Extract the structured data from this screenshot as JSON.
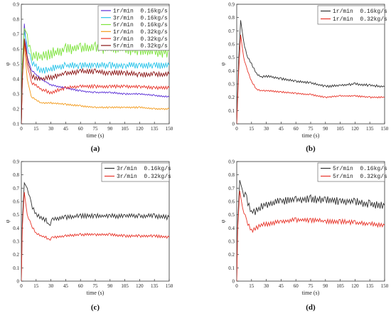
{
  "chart_data": [
    {
      "type": "line",
      "panel_label": "(a)",
      "xlabel": "time (s)",
      "ylabel": "φ",
      "xlim": [
        0,
        150
      ],
      "ylim": [
        0.1,
        0.9
      ],
      "xticks": [
        "0",
        "15",
        "30",
        "45",
        "60",
        "75",
        "90",
        "105",
        "120",
        "135",
        "150"
      ],
      "yticks": [
        "0.1",
        "0.2",
        "0.3",
        "0.4",
        "0.5",
        "0.6",
        "0.7",
        "0.8",
        "0.9"
      ],
      "legend_position": "top-right",
      "grid": false,
      "series": [
        {
          "name": "1r/min  0.16kg/s",
          "color": "#5b2fd6",
          "noise": 0.004,
          "points": [
            [
              0,
              0.1
            ],
            [
              1,
              0.45
            ],
            [
              3,
              0.77
            ],
            [
              6,
              0.55
            ],
            [
              10,
              0.46
            ],
            [
              20,
              0.4
            ],
            [
              30,
              0.36
            ],
            [
              45,
              0.34
            ],
            [
              60,
              0.32
            ],
            [
              75,
              0.31
            ],
            [
              90,
              0.31
            ],
            [
              105,
              0.3
            ],
            [
              120,
              0.3
            ],
            [
              135,
              0.29
            ],
            [
              150,
              0.28
            ]
          ]
        },
        {
          "name": "3r/min  0.16kg/s",
          "color": "#29c4ea",
          "noise": 0.015,
          "points": [
            [
              0,
              0.1
            ],
            [
              1,
              0.45
            ],
            [
              3,
              0.72
            ],
            [
              6,
              0.62
            ],
            [
              10,
              0.52
            ],
            [
              20,
              0.45
            ],
            [
              30,
              0.47
            ],
            [
              45,
              0.49
            ],
            [
              60,
              0.49
            ],
            [
              75,
              0.49
            ],
            [
              90,
              0.49
            ],
            [
              105,
              0.49
            ],
            [
              120,
              0.49
            ],
            [
              135,
              0.49
            ],
            [
              150,
              0.49
            ]
          ]
        },
        {
          "name": "5r/min  0.16kg/s",
          "color": "#7de33c",
          "noise": 0.025,
          "points": [
            [
              0,
              0.1
            ],
            [
              1,
              0.5
            ],
            [
              3,
              0.74
            ],
            [
              6,
              0.7
            ],
            [
              10,
              0.55
            ],
            [
              20,
              0.55
            ],
            [
              30,
              0.57
            ],
            [
              45,
              0.6
            ],
            [
              60,
              0.61
            ],
            [
              75,
              0.61
            ],
            [
              90,
              0.6
            ],
            [
              105,
              0.6
            ],
            [
              120,
              0.59
            ],
            [
              135,
              0.58
            ],
            [
              150,
              0.58
            ]
          ]
        },
        {
          "name": "1r/min  0.32kg/s",
          "color": "#f39b1c",
          "noise": 0.004,
          "points": [
            [
              0,
              0.1
            ],
            [
              1,
              0.4
            ],
            [
              3,
              0.64
            ],
            [
              6,
              0.4
            ],
            [
              10,
              0.28
            ],
            [
              20,
              0.24
            ],
            [
              30,
              0.24
            ],
            [
              45,
              0.23
            ],
            [
              60,
              0.22
            ],
            [
              75,
              0.21
            ],
            [
              90,
              0.21
            ],
            [
              105,
              0.21
            ],
            [
              120,
              0.21
            ],
            [
              135,
              0.2
            ],
            [
              150,
              0.2
            ]
          ]
        },
        {
          "name": "3r/min  0.32kg/s",
          "color": "#e8352a",
          "noise": 0.008,
          "points": [
            [
              0,
              0.1
            ],
            [
              1,
              0.4
            ],
            [
              3,
              0.66
            ],
            [
              6,
              0.5
            ],
            [
              10,
              0.38
            ],
            [
              20,
              0.33
            ],
            [
              30,
              0.31
            ],
            [
              45,
              0.34
            ],
            [
              60,
              0.35
            ],
            [
              75,
              0.35
            ],
            [
              90,
              0.35
            ],
            [
              105,
              0.35
            ],
            [
              120,
              0.35
            ],
            [
              135,
              0.34
            ],
            [
              150,
              0.34
            ]
          ]
        },
        {
          "name": "5r/min  0.32kg/s",
          "color": "#8a1414",
          "noise": 0.012,
          "points": [
            [
              0,
              0.1
            ],
            [
              1,
              0.4
            ],
            [
              3,
              0.67
            ],
            [
              6,
              0.55
            ],
            [
              10,
              0.42
            ],
            [
              20,
              0.4
            ],
            [
              30,
              0.41
            ],
            [
              45,
              0.44
            ],
            [
              60,
              0.45
            ],
            [
              75,
              0.45
            ],
            [
              90,
              0.44
            ],
            [
              105,
              0.44
            ],
            [
              120,
              0.43
            ],
            [
              135,
              0.43
            ],
            [
              150,
              0.43
            ]
          ]
        }
      ]
    },
    {
      "type": "line",
      "panel_label": "(b)",
      "xlabel": "time (s)",
      "ylabel": "φ",
      "xlim": [
        0,
        150
      ],
      "ylim": [
        0,
        0.9
      ],
      "xticks": [
        "0",
        "15",
        "30",
        "45",
        "60",
        "75",
        "90",
        "105",
        "120",
        "135",
        "150"
      ],
      "yticks": [
        "0",
        "0.1",
        "0.2",
        "0.3",
        "0.4",
        "0.5",
        "0.6",
        "0.7",
        "0.8",
        "0.9"
      ],
      "legend_position": "top-right",
      "grid": false,
      "series": [
        {
          "name": "1r/min  0.16kg/s",
          "color": "#333333",
          "noise": 0.006,
          "points": [
            [
              0,
              0
            ],
            [
              2,
              0.5
            ],
            [
              4,
              0.78
            ],
            [
              7,
              0.62
            ],
            [
              10,
              0.52
            ],
            [
              15,
              0.45
            ],
            [
              20,
              0.38
            ],
            [
              25,
              0.35
            ],
            [
              30,
              0.36
            ],
            [
              45,
              0.34
            ],
            [
              60,
              0.32
            ],
            [
              75,
              0.31
            ],
            [
              90,
              0.28
            ],
            [
              105,
              0.29
            ],
            [
              120,
              0.3
            ],
            [
              135,
              0.29
            ],
            [
              150,
              0.28
            ]
          ]
        },
        {
          "name": "1r/min  0.32kg/s",
          "color": "#e8352a",
          "noise": 0.004,
          "points": [
            [
              0,
              0
            ],
            [
              2,
              0.4
            ],
            [
              4,
              0.67
            ],
            [
              7,
              0.5
            ],
            [
              10,
              0.42
            ],
            [
              15,
              0.32
            ],
            [
              20,
              0.26
            ],
            [
              25,
              0.25
            ],
            [
              30,
              0.25
            ],
            [
              45,
              0.24
            ],
            [
              60,
              0.23
            ],
            [
              75,
              0.22
            ],
            [
              90,
              0.2
            ],
            [
              105,
              0.21
            ],
            [
              120,
              0.21
            ],
            [
              135,
              0.2
            ],
            [
              150,
              0.2
            ]
          ]
        }
      ]
    },
    {
      "type": "line",
      "panel_label": "(c)",
      "xlabel": "time (s)",
      "ylabel": "φ",
      "xlim": [
        0,
        150
      ],
      "ylim": [
        0,
        0.9
      ],
      "xticks": [
        "0",
        "15",
        "30",
        "45",
        "60",
        "75",
        "90",
        "105",
        "120",
        "135",
        "150"
      ],
      "yticks": [
        "0",
        "0.1",
        "0.2",
        "0.3",
        "0.4",
        "0.5",
        "0.6",
        "0.7",
        "0.8",
        "0.9"
      ],
      "legend_position": "top-right",
      "grid": false,
      "series": [
        {
          "name": "3r/min  0.16kg/s",
          "color": "#333333",
          "noise": 0.012,
          "points": [
            [
              0,
              0
            ],
            [
              1,
              0.45
            ],
            [
              3,
              0.74
            ],
            [
              6,
              0.7
            ],
            [
              10,
              0.58
            ],
            [
              15,
              0.5
            ],
            [
              20,
              0.48
            ],
            [
              25,
              0.46
            ],
            [
              28,
              0.41
            ],
            [
              32,
              0.47
            ],
            [
              45,
              0.48
            ],
            [
              60,
              0.49
            ],
            [
              75,
              0.49
            ],
            [
              90,
              0.49
            ],
            [
              105,
              0.49
            ],
            [
              120,
              0.49
            ],
            [
              135,
              0.49
            ],
            [
              150,
              0.48
            ]
          ]
        },
        {
          "name": "3r/min  0.32kg/s",
          "color": "#e8352a",
          "noise": 0.007,
          "points": [
            [
              0,
              0
            ],
            [
              1,
              0.4
            ],
            [
              3,
              0.67
            ],
            [
              6,
              0.5
            ],
            [
              10,
              0.42
            ],
            [
              15,
              0.36
            ],
            [
              20,
              0.34
            ],
            [
              25,
              0.33
            ],
            [
              28,
              0.31
            ],
            [
              32,
              0.33
            ],
            [
              45,
              0.34
            ],
            [
              60,
              0.35
            ],
            [
              75,
              0.35
            ],
            [
              90,
              0.35
            ],
            [
              105,
              0.34
            ],
            [
              120,
              0.34
            ],
            [
              135,
              0.34
            ],
            [
              150,
              0.33
            ]
          ]
        }
      ]
    },
    {
      "type": "line",
      "panel_label": "(d)",
      "xlabel": "time (s)",
      "ylabel": "φ",
      "xlim": [
        0,
        150
      ],
      "ylim": [
        0,
        0.9
      ],
      "xticks": [
        "0",
        "15",
        "30",
        "45",
        "60",
        "75",
        "90",
        "105",
        "120",
        "135",
        "150"
      ],
      "yticks": [
        "0",
        "0.1",
        "0.2",
        "0.3",
        "0.4",
        "0.5",
        "0.6",
        "0.7",
        "0.8",
        "0.9"
      ],
      "legend_position": "top-right",
      "grid": false,
      "series": [
        {
          "name": "5r/min  0.16kg/s",
          "color": "#333333",
          "noise": 0.02,
          "points": [
            [
              0,
              0
            ],
            [
              1,
              0.45
            ],
            [
              3,
              0.76
            ],
            [
              6,
              0.68
            ],
            [
              10,
              0.62
            ],
            [
              15,
              0.52
            ],
            [
              20,
              0.53
            ],
            [
              25,
              0.56
            ],
            [
              30,
              0.58
            ],
            [
              45,
              0.6
            ],
            [
              60,
              0.61
            ],
            [
              75,
              0.62
            ],
            [
              90,
              0.61
            ],
            [
              105,
              0.6
            ],
            [
              120,
              0.6
            ],
            [
              135,
              0.58
            ],
            [
              150,
              0.57
            ]
          ]
        },
        {
          "name": "5r/min  0.32kg/s",
          "color": "#e8352a",
          "noise": 0.012,
          "points": [
            [
              0,
              0
            ],
            [
              1,
              0.4
            ],
            [
              3,
              0.68
            ],
            [
              6,
              0.55
            ],
            [
              10,
              0.45
            ],
            [
              15,
              0.38
            ],
            [
              20,
              0.4
            ],
            [
              25,
              0.42
            ],
            [
              30,
              0.43
            ],
            [
              45,
              0.45
            ],
            [
              60,
              0.46
            ],
            [
              75,
              0.46
            ],
            [
              90,
              0.45
            ],
            [
              105,
              0.45
            ],
            [
              120,
              0.44
            ],
            [
              135,
              0.43
            ],
            [
              150,
              0.42
            ]
          ]
        }
      ]
    }
  ]
}
